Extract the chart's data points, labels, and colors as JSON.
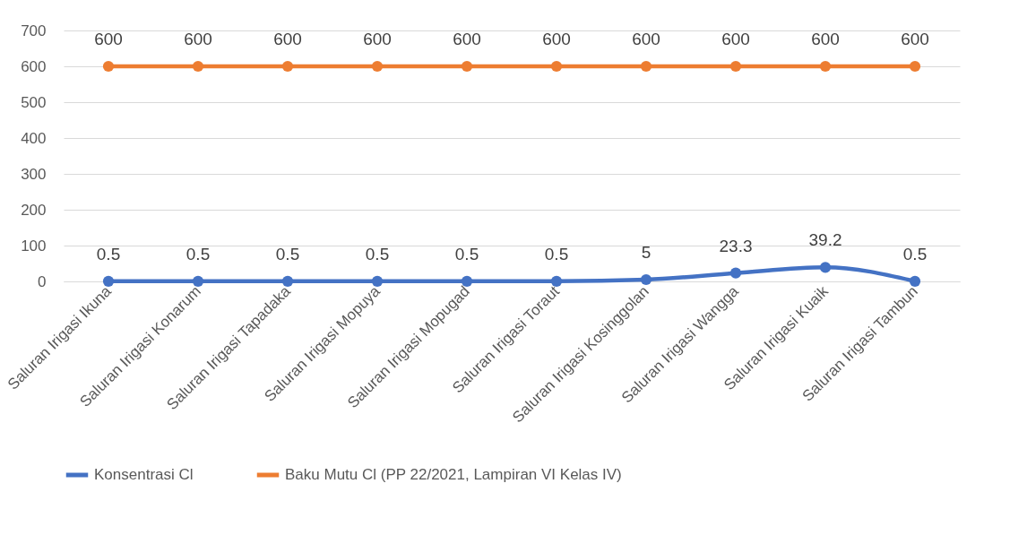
{
  "chart_data": {
    "type": "line",
    "categories": [
      "Saluran Irigasi Ikuna",
      "Saluran Irigasi Konarum",
      "Saluran Irigasi Tapadaka",
      "Saluran Irigasi Mopuya",
      "Saluran Irigasi Mopugad",
      "Saluran Irigasi Toraut",
      "Saluran Irigasi Kosinggolan",
      "Saluran Irigasi Wangga",
      "Saluran Irigasi Kuaik",
      "Saluran Irigasi Tambun"
    ],
    "series": [
      {
        "name": "Konsentrasi Cl",
        "color": "#4472c4",
        "values": [
          0.5,
          0.5,
          0.5,
          0.5,
          0.5,
          0.5,
          5,
          23.3,
          39.2,
          0.5
        ]
      },
      {
        "name": "Baku Mutu Cl (PP 22/2021, Lampiran VI Kelas IV)",
        "color": "#ed7d31",
        "values": [
          600,
          600,
          600,
          600,
          600,
          600,
          600,
          600,
          600,
          600
        ]
      }
    ],
    "ylim": [
      0,
      700
    ],
    "yticks": [
      0,
      100,
      200,
      300,
      400,
      500,
      600,
      700
    ],
    "grid": "y",
    "legend": "bottom",
    "marker": "circle",
    "line_style": "solid",
    "data_labels": true
  }
}
